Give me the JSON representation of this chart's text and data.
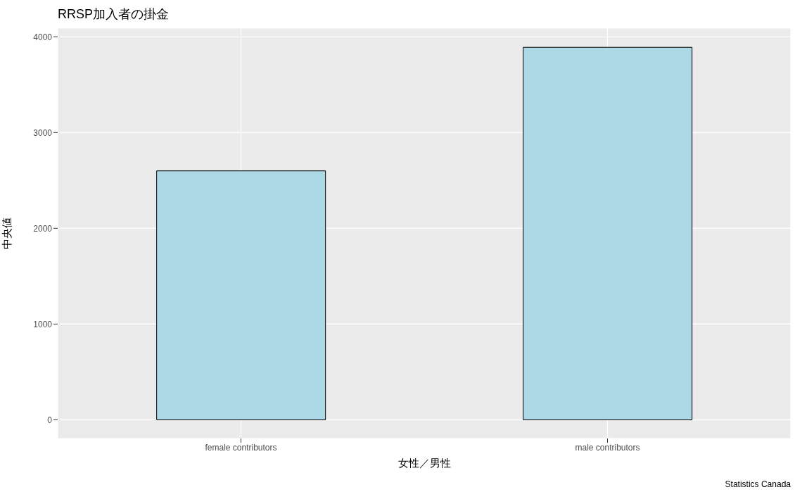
{
  "chart_data": {
    "type": "bar",
    "title": "RRSP加入者の掛金",
    "xlabel": "女性／男性",
    "ylabel": "中央値",
    "categories": [
      "female contributors",
      "male contributors"
    ],
    "values": [
      2600,
      3890
    ],
    "color": "#add8e6",
    "ylim": [
      -195,
      4090
    ],
    "yticks": [
      0,
      1000,
      2000,
      3000,
      4000
    ],
    "grid": true,
    "annotations": [
      "Statistics Canada"
    ]
  }
}
